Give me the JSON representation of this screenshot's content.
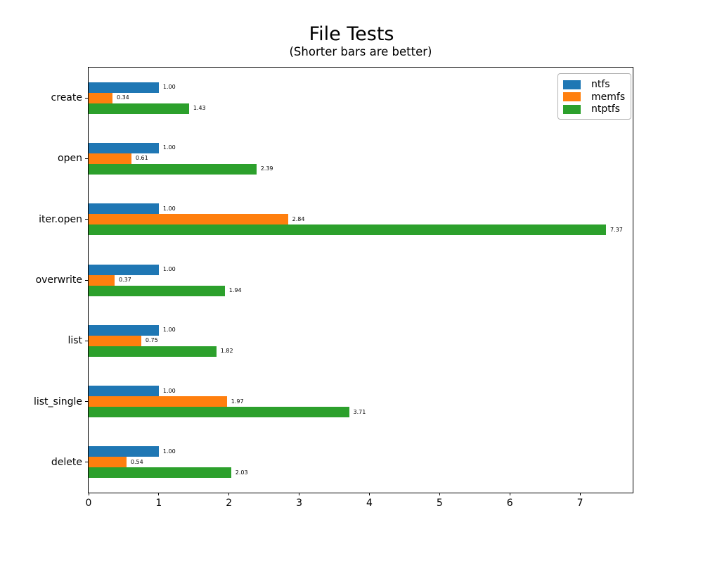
{
  "chart_data": {
    "type": "bar",
    "orientation": "horizontal",
    "title": "File Tests",
    "subtitle": "(Shorter bars are better)",
    "categories": [
      "create",
      "open",
      "iter.open",
      "overwrite",
      "list",
      "list_single",
      "delete"
    ],
    "series": [
      {
        "name": "ntfs",
        "color": "#1f77b4",
        "values": [
          1.0,
          1.0,
          1.0,
          1.0,
          1.0,
          1.0,
          1.0
        ]
      },
      {
        "name": "memfs",
        "color": "#ff7f0e",
        "values": [
          0.34,
          0.61,
          2.84,
          0.37,
          0.75,
          1.97,
          0.54
        ]
      },
      {
        "name": "ntptfs",
        "color": "#2ca02c",
        "values": [
          1.43,
          2.39,
          7.37,
          1.94,
          1.82,
          3.71,
          2.03
        ]
      }
    ],
    "value_labels": [
      [
        "1.00",
        "1.00",
        "1.00",
        "1.00",
        "1.00",
        "1.00",
        "1.00"
      ],
      [
        "0.34",
        "0.61",
        "2.84",
        "0.37",
        "0.75",
        "1.97",
        "0.54"
      ],
      [
        "1.43",
        "2.39",
        "7.37",
        "1.94",
        "1.82",
        "3.71",
        "2.03"
      ]
    ],
    "xticks": [
      0,
      1,
      2,
      3,
      4,
      5,
      6,
      7
    ],
    "xlim": [
      0,
      7.75
    ],
    "grid": false,
    "legend_position": "upper-right",
    "background": "#ffffff"
  }
}
